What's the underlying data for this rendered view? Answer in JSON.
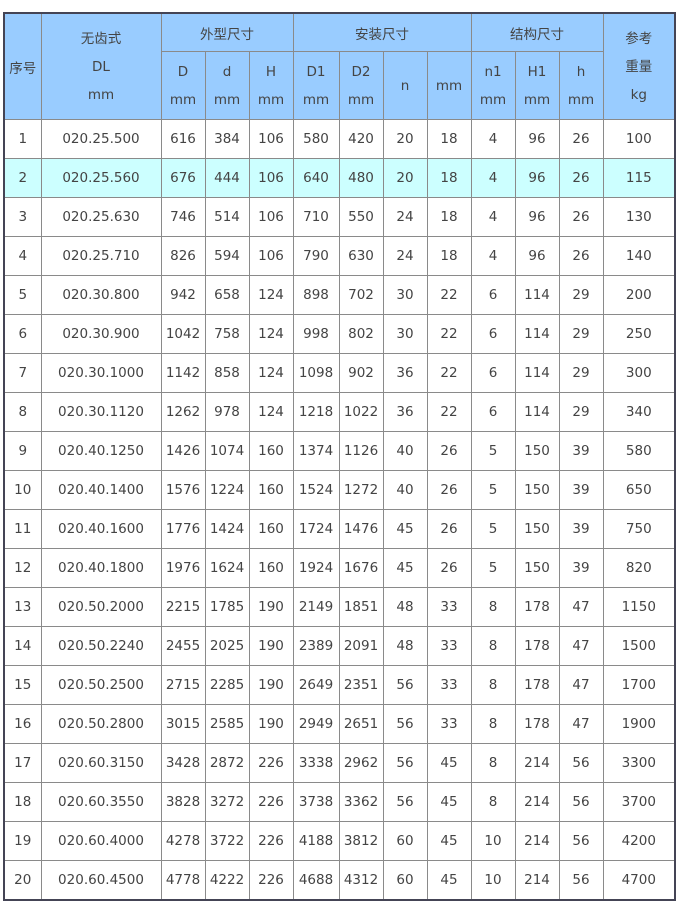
{
  "header": {
    "no": "序号",
    "model": [
      "无齿式",
      "DL",
      "mm"
    ],
    "group_outer": "外型尺寸",
    "group_install": "安装尺寸",
    "group_struct": "结构尺寸",
    "weight": [
      "参考",
      "重量",
      "kg"
    ],
    "sub": [
      [
        "D",
        "mm"
      ],
      [
        "d",
        "mm"
      ],
      [
        "H",
        "mm"
      ],
      [
        "D1",
        "mm"
      ],
      [
        "D2",
        "mm"
      ],
      [
        "n"
      ],
      [
        "mm"
      ],
      [
        "n1",
        "mm"
      ],
      [
        "H1",
        "mm"
      ],
      [
        "h",
        "mm"
      ]
    ]
  },
  "highlight_color": "#ccffff",
  "header_color": "#99ccff",
  "rows": [
    [
      "1",
      "020.25.500",
      "616",
      "384",
      "106",
      "580",
      "420",
      "20",
      "18",
      "4",
      "96",
      "26",
      "100"
    ],
    [
      "2",
      "020.25.560",
      "676",
      "444",
      "106",
      "640",
      "480",
      "20",
      "18",
      "4",
      "96",
      "26",
      "115"
    ],
    [
      "3",
      "020.25.630",
      "746",
      "514",
      "106",
      "710",
      "550",
      "24",
      "18",
      "4",
      "96",
      "26",
      "130"
    ],
    [
      "4",
      "020.25.710",
      "826",
      "594",
      "106",
      "790",
      "630",
      "24",
      "18",
      "4",
      "96",
      "26",
      "140"
    ],
    [
      "5",
      "020.30.800",
      "942",
      "658",
      "124",
      "898",
      "702",
      "30",
      "22",
      "6",
      "114",
      "29",
      "200"
    ],
    [
      "6",
      "020.30.900",
      "1042",
      "758",
      "124",
      "998",
      "802",
      "30",
      "22",
      "6",
      "114",
      "29",
      "250"
    ],
    [
      "7",
      "020.30.1000",
      "1142",
      "858",
      "124",
      "1098",
      "902",
      "36",
      "22",
      "6",
      "114",
      "29",
      "300"
    ],
    [
      "8",
      "020.30.1120",
      "1262",
      "978",
      "124",
      "1218",
      "1022",
      "36",
      "22",
      "6",
      "114",
      "29",
      "340"
    ],
    [
      "9",
      "020.40.1250",
      "1426",
      "1074",
      "160",
      "1374",
      "1126",
      "40",
      "26",
      "5",
      "150",
      "39",
      "580"
    ],
    [
      "10",
      "020.40.1400",
      "1576",
      "1224",
      "160",
      "1524",
      "1272",
      "40",
      "26",
      "5",
      "150",
      "39",
      "650"
    ],
    [
      "11",
      "020.40.1600",
      "1776",
      "1424",
      "160",
      "1724",
      "1476",
      "45",
      "26",
      "5",
      "150",
      "39",
      "750"
    ],
    [
      "12",
      "020.40.1800",
      "1976",
      "1624",
      "160",
      "1924",
      "1676",
      "45",
      "26",
      "5",
      "150",
      "39",
      "820"
    ],
    [
      "13",
      "020.50.2000",
      "2215",
      "1785",
      "190",
      "2149",
      "1851",
      "48",
      "33",
      "8",
      "178",
      "47",
      "1150"
    ],
    [
      "14",
      "020.50.2240",
      "2455",
      "2025",
      "190",
      "2389",
      "2091",
      "48",
      "33",
      "8",
      "178",
      "47",
      "1500"
    ],
    [
      "15",
      "020.50.2500",
      "2715",
      "2285",
      "190",
      "2649",
      "2351",
      "56",
      "33",
      "8",
      "178",
      "47",
      "1700"
    ],
    [
      "16",
      "020.50.2800",
      "3015",
      "2585",
      "190",
      "2949",
      "2651",
      "56",
      "33",
      "8",
      "178",
      "47",
      "1900"
    ],
    [
      "17",
      "020.60.3150",
      "3428",
      "2872",
      "226",
      "3338",
      "2962",
      "56",
      "45",
      "8",
      "214",
      "56",
      "3300"
    ],
    [
      "18",
      "020.60.3550",
      "3828",
      "3272",
      "226",
      "3738",
      "3362",
      "56",
      "45",
      "8",
      "214",
      "56",
      "3700"
    ],
    [
      "19",
      "020.60.4000",
      "4278",
      "3722",
      "226",
      "4188",
      "3812",
      "60",
      "45",
      "10",
      "214",
      "56",
      "4200"
    ],
    [
      "20",
      "020.60.4500",
      "4778",
      "4222",
      "226",
      "4688",
      "4312",
      "60",
      "45",
      "10",
      "214",
      "56",
      "4700"
    ]
  ]
}
